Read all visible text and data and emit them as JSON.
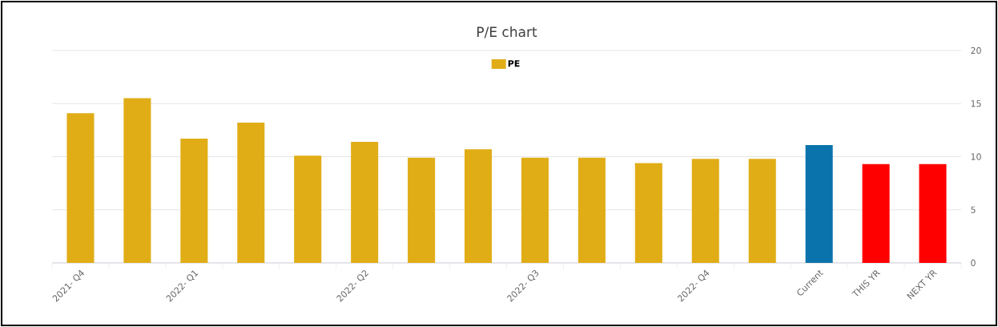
{
  "chart_data": {
    "type": "bar",
    "title": "P/E chart",
    "categories": [
      "2021- Q4",
      null,
      "2022- Q1",
      null,
      null,
      "2022- Q2",
      null,
      null,
      "2022- Q3",
      null,
      null,
      "2022- Q4",
      null,
      "Current",
      "THIS YR",
      "NEXT YR"
    ],
    "series": [
      {
        "name": "PE",
        "color": "#e0ad16",
        "values": [
          14.1,
          15.5,
          11.7,
          13.2,
          10.1,
          11.4,
          9.9,
          10.7,
          9.9,
          9.9,
          9.4,
          9.8,
          9.8,
          11.1,
          9.3,
          9.3
        ],
        "colors": [
          "#e0ad16",
          "#e0ad16",
          "#e0ad16",
          "#e0ad16",
          "#e0ad16",
          "#e0ad16",
          "#e0ad16",
          "#e0ad16",
          "#e0ad16",
          "#e0ad16",
          "#e0ad16",
          "#e0ad16",
          "#e0ad16",
          "#0a73ab",
          "#ff0000",
          "#ff0000"
        ]
      }
    ],
    "ylim": [
      0,
      20
    ],
    "yticks": [
      0,
      5,
      10,
      15,
      20
    ],
    "grid": "y",
    "legend": "top"
  }
}
